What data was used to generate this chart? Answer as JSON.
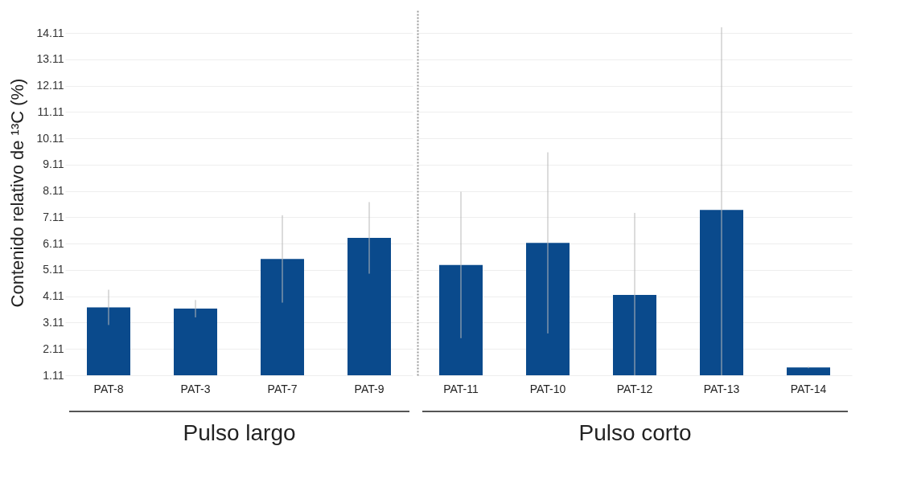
{
  "chart_data": [
    {
      "type": "bar",
      "categories": [
        "PAT-8",
        "PAT-3",
        "PAT-7",
        "PAT-9"
      ],
      "values": [
        3.69,
        3.64,
        5.53,
        6.33
      ],
      "errors": [
        [
          3.02,
          4.36
        ],
        [
          3.31,
          3.97
        ],
        [
          3.87,
          7.19
        ],
        [
          4.97,
          7.69
        ]
      ],
      "color": "#0a4a8c",
      "ylabel": "Contenido relativo de ¹³C (%)",
      "xlabel": "Pulso largo",
      "ylim": [
        1.11,
        15.0
      ],
      "yticks": [
        1.11,
        2.11,
        3.11,
        4.11,
        5.11,
        6.11,
        7.11,
        8.11,
        9.11,
        10.11,
        11.11,
        12.11,
        13.11,
        14.11
      ],
      "grid": "y"
    },
    {
      "type": "bar",
      "categories": [
        "PAT-11",
        "PAT-10",
        "PAT-12",
        "PAT-13",
        "PAT-14"
      ],
      "values": [
        5.3,
        6.14,
        4.16,
        7.39,
        1.41
      ],
      "errors": [
        [
          2.52,
          8.08
        ],
        [
          2.7,
          9.58
        ],
        [
          1.11,
          7.28
        ],
        [
          1.11,
          14.33
        ],
        [
          1.38,
          1.44
        ]
      ],
      "color": "#0a4a8c",
      "xlabel": "Pulso corto",
      "ylim": [
        1.11,
        15.0
      ],
      "yticks": [
        1.11,
        2.11,
        3.11,
        4.11,
        5.11,
        6.11,
        7.11,
        8.11,
        9.11,
        10.11,
        11.11,
        12.11,
        13.11,
        14.11
      ],
      "grid": "y",
      "tick_labels": "x"
    }
  ]
}
